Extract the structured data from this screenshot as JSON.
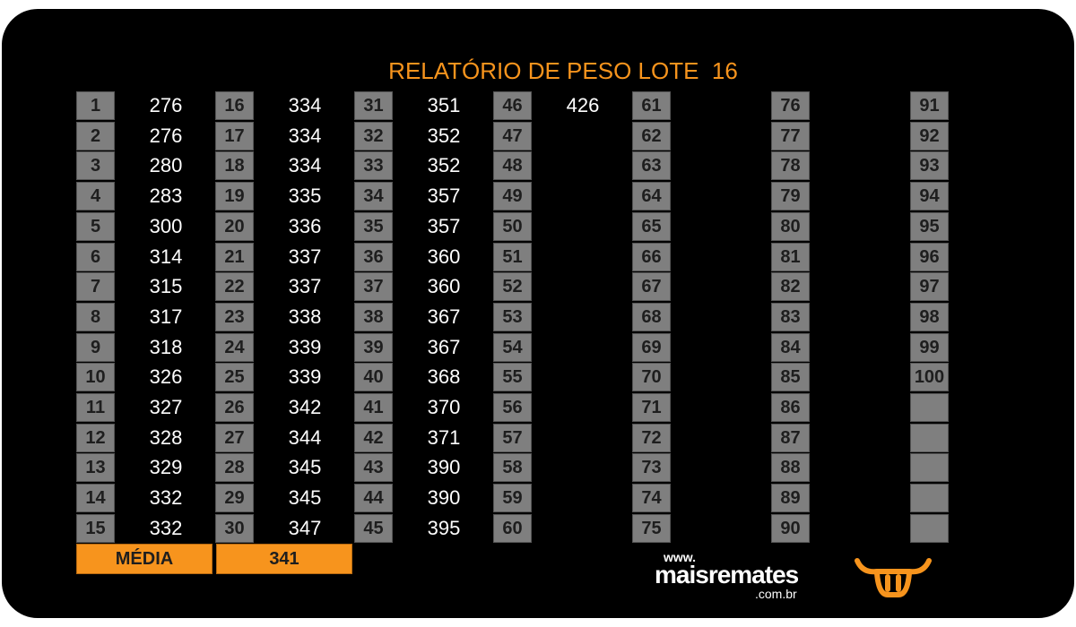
{
  "header": {
    "title": "RELATÓRIO DE PESO LOTE  16"
  },
  "table": {
    "groups": [
      {
        "numbers": [
          1,
          2,
          3,
          4,
          5,
          6,
          7,
          8,
          9,
          10,
          11,
          12,
          13,
          14,
          15
        ],
        "weights": [
          276,
          276,
          280,
          283,
          300,
          314,
          315,
          317,
          318,
          326,
          327,
          328,
          329,
          332,
          332
        ]
      },
      {
        "numbers": [
          16,
          17,
          18,
          19,
          20,
          21,
          22,
          23,
          24,
          25,
          26,
          27,
          28,
          29,
          30
        ],
        "weights": [
          334,
          334,
          334,
          335,
          336,
          337,
          337,
          338,
          339,
          339,
          342,
          344,
          345,
          345,
          347
        ]
      },
      {
        "numbers": [
          31,
          32,
          33,
          34,
          35,
          36,
          37,
          38,
          39,
          40,
          41,
          42,
          43,
          44,
          45
        ],
        "weights": [
          351,
          352,
          352,
          357,
          357,
          360,
          360,
          367,
          367,
          368,
          370,
          371,
          390,
          390,
          395
        ]
      },
      {
        "numbers": [
          46,
          47,
          48,
          49,
          50,
          51,
          52,
          53,
          54,
          55,
          56,
          57,
          58,
          59,
          60
        ],
        "weights": [
          426
        ]
      },
      {
        "numbers": [
          61,
          62,
          63,
          64,
          65,
          66,
          67,
          68,
          69,
          70,
          71,
          72,
          73,
          74,
          75
        ],
        "weights": []
      },
      {
        "numbers": [
          76,
          77,
          78,
          79,
          80,
          81,
          82,
          83,
          84,
          85,
          86,
          87,
          88,
          89,
          90
        ],
        "weights": []
      },
      {
        "numbers": [
          91,
          92,
          93,
          94,
          95,
          96,
          97,
          98,
          99,
          100
        ],
        "weights": []
      }
    ]
  },
  "average": {
    "label": "MÉDIA",
    "value": 341
  },
  "logo": {
    "prefix": "www.",
    "name": "maisremates",
    "suffix": ".com.br"
  }
}
